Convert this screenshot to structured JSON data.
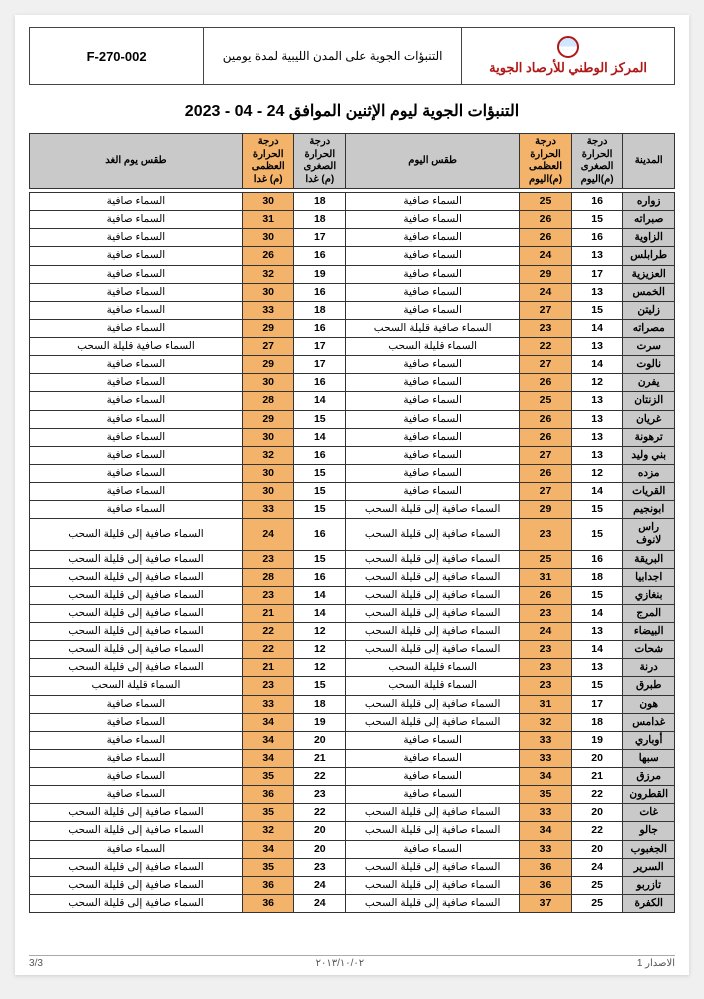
{
  "header": {
    "org_name": "المركز الوطني للأرصاد الجوية",
    "doc_title": "التنبؤات الجوية على المدن الليبية لمدة يومين",
    "doc_number": "F-270-002"
  },
  "title": "التنبؤات الجوية ليوم الإثنين الموافق 24 - 04 - 2023",
  "columns": {
    "city": "المدينة",
    "tmin_today": "درجة الحرارة الصغرى (م)اليوم",
    "tmax_today": "درجة الحرارة العظمى (م)اليوم",
    "cond_today": "طقس اليوم",
    "tmin_tomorrow": "درجة الحرارة الصغرى (م) غدا",
    "tmax_tomorrow": "درجة الحرارة العظمى (م) غدا",
    "cond_tomorrow": "طقس يوم الغد"
  },
  "col_widths_pct": {
    "city": 8,
    "tmin_today": 8,
    "tmax_today": 8,
    "cond_today": 27,
    "tmin_tomorrow": 8,
    "tmax_tomorrow": 8,
    "cond_tomorrow": 33
  },
  "colors": {
    "header_gray": "#c9c9c9",
    "orange": "#f4b36a",
    "org_red": "#b01818",
    "border": "#333333"
  },
  "rows": [
    {
      "city": "زواره",
      "tmin_t": 16,
      "tmax_t": 25,
      "cond_t": "السماء صافية",
      "tmin_m": 18,
      "tmax_m": 30,
      "cond_m": "السماء صافية"
    },
    {
      "city": "صبراته",
      "tmin_t": 15,
      "tmax_t": 26,
      "cond_t": "السماء صافية",
      "tmin_m": 18,
      "tmax_m": 31,
      "cond_m": "السماء صافية"
    },
    {
      "city": "الزاوية",
      "tmin_t": 16,
      "tmax_t": 26,
      "cond_t": "السماء صافية",
      "tmin_m": 17,
      "tmax_m": 30,
      "cond_m": "السماء صافية"
    },
    {
      "city": "طرابلس",
      "tmin_t": 13,
      "tmax_t": 24,
      "cond_t": "السماء صافية",
      "tmin_m": 16,
      "tmax_m": 26,
      "cond_m": "السماء صافية"
    },
    {
      "city": "العزيزية",
      "tmin_t": 17,
      "tmax_t": 29,
      "cond_t": "السماء صافية",
      "tmin_m": 19,
      "tmax_m": 32,
      "cond_m": "السماء صافية"
    },
    {
      "city": "الخمس",
      "tmin_t": 13,
      "tmax_t": 24,
      "cond_t": "السماء صافية",
      "tmin_m": 16,
      "tmax_m": 30,
      "cond_m": "السماء صافية"
    },
    {
      "city": "زليتن",
      "tmin_t": 15,
      "tmax_t": 27,
      "cond_t": "السماء صافية",
      "tmin_m": 18,
      "tmax_m": 33,
      "cond_m": "السماء صافية"
    },
    {
      "city": "مصراته",
      "tmin_t": 14,
      "tmax_t": 23,
      "cond_t": "السماء صافية قليلة السحب",
      "tmin_m": 16,
      "tmax_m": 29,
      "cond_m": "السماء صافية"
    },
    {
      "city": "سرت",
      "tmin_t": 13,
      "tmax_t": 22,
      "cond_t": "السماء قليلة السحب",
      "tmin_m": 17,
      "tmax_m": 27,
      "cond_m": "السماء صافية قليلة السحب"
    },
    {
      "city": "نالوت",
      "tmin_t": 14,
      "tmax_t": 27,
      "cond_t": "السماء صافية",
      "tmin_m": 17,
      "tmax_m": 29,
      "cond_m": "السماء صافية"
    },
    {
      "city": "يفرن",
      "tmin_t": 12,
      "tmax_t": 26,
      "cond_t": "السماء صافية",
      "tmin_m": 16,
      "tmax_m": 30,
      "cond_m": "السماء صافية"
    },
    {
      "city": "الزنتان",
      "tmin_t": 13,
      "tmax_t": 25,
      "cond_t": "السماء صافية",
      "tmin_m": 14,
      "tmax_m": 28,
      "cond_m": "السماء صافية"
    },
    {
      "city": "غريان",
      "tmin_t": 13,
      "tmax_t": 26,
      "cond_t": "السماء صافية",
      "tmin_m": 15,
      "tmax_m": 29,
      "cond_m": "السماء صافية"
    },
    {
      "city": "ترهونة",
      "tmin_t": 13,
      "tmax_t": 26,
      "cond_t": "السماء صافية",
      "tmin_m": 14,
      "tmax_m": 30,
      "cond_m": "السماء صافية"
    },
    {
      "city": "بني وليد",
      "tmin_t": 13,
      "tmax_t": 27,
      "cond_t": "السماء صافية",
      "tmin_m": 16,
      "tmax_m": 32,
      "cond_m": "السماء صافية"
    },
    {
      "city": "مزده",
      "tmin_t": 12,
      "tmax_t": 26,
      "cond_t": "السماء صافية",
      "tmin_m": 15,
      "tmax_m": 30,
      "cond_m": "السماء صافية"
    },
    {
      "city": "القريات",
      "tmin_t": 14,
      "tmax_t": 27,
      "cond_t": "السماء صافية",
      "tmin_m": 15,
      "tmax_m": 30,
      "cond_m": "السماء صافية"
    },
    {
      "city": "ابونجيم",
      "tmin_t": 15,
      "tmax_t": 29,
      "cond_t": "السماء صافية إلى قليلة السحب",
      "tmin_m": 15,
      "tmax_m": 33,
      "cond_m": "السماء صافية"
    },
    {
      "city": "راس لانوف",
      "tmin_t": 15,
      "tmax_t": 23,
      "cond_t": "السماء صافية إلى قليلة السحب",
      "tmin_m": 16,
      "tmax_m": 24,
      "cond_m": "السماء صافية إلى قليلة السحب"
    },
    {
      "city": "البريقة",
      "tmin_t": 16,
      "tmax_t": 25,
      "cond_t": "السماء صافية إلى قليلة السحب",
      "tmin_m": 15,
      "tmax_m": 23,
      "cond_m": "السماء صافية إلى قليلة السحب"
    },
    {
      "city": "اجدابيا",
      "tmin_t": 18,
      "tmax_t": 31,
      "cond_t": "السماء صافية إلى قليلة السحب",
      "tmin_m": 16,
      "tmax_m": 28,
      "cond_m": "السماء صافية إلى قليلة السحب"
    },
    {
      "city": "بنغازي",
      "tmin_t": 15,
      "tmax_t": 26,
      "cond_t": "السماء صافية إلى قليلة السحب",
      "tmin_m": 14,
      "tmax_m": 23,
      "cond_m": "السماء صافية إلى قليلة السحب"
    },
    {
      "city": "المرج",
      "tmin_t": 14,
      "tmax_t": 23,
      "cond_t": "السماء صافية إلى قليلة السحب",
      "tmin_m": 14,
      "tmax_m": 21,
      "cond_m": "السماء صافية إلى قليلة السحب"
    },
    {
      "city": "البيضاء",
      "tmin_t": 13,
      "tmax_t": 24,
      "cond_t": "السماء صافية إلى قليلة السحب",
      "tmin_m": 12,
      "tmax_m": 22,
      "cond_m": "السماء صافية إلى قليلة السحب"
    },
    {
      "city": "شحات",
      "tmin_t": 14,
      "tmax_t": 23,
      "cond_t": "السماء صافية إلى قليلة السحب",
      "tmin_m": 12,
      "tmax_m": 22,
      "cond_m": "السماء صافية إلى قليلة السحب"
    },
    {
      "city": "درنة",
      "tmin_t": 13,
      "tmax_t": 23,
      "cond_t": "السماء قليلة السحب",
      "tmin_m": 12,
      "tmax_m": 21,
      "cond_m": "السماء صافية إلى قليلة السحب"
    },
    {
      "city": "طبرق",
      "tmin_t": 15,
      "tmax_t": 23,
      "cond_t": "السماء قليلة السحب",
      "tmin_m": 15,
      "tmax_m": 23,
      "cond_m": "السماء قليلة السحب"
    },
    {
      "city": "هون",
      "tmin_t": 17,
      "tmax_t": 31,
      "cond_t": "السماء صافية إلى قليلة السحب",
      "tmin_m": 18,
      "tmax_m": 33,
      "cond_m": "السماء صافية"
    },
    {
      "city": "غدامس",
      "tmin_t": 18,
      "tmax_t": 32,
      "cond_t": "السماء صافية إلى قليلة السحب",
      "tmin_m": 19,
      "tmax_m": 34,
      "cond_m": "السماء صافية"
    },
    {
      "city": "أوباري",
      "tmin_t": 19,
      "tmax_t": 33,
      "cond_t": "السماء صافية",
      "tmin_m": 20,
      "tmax_m": 34,
      "cond_m": "السماء صافية"
    },
    {
      "city": "سبها",
      "tmin_t": 20,
      "tmax_t": 33,
      "cond_t": "السماء صافية",
      "tmin_m": 21,
      "tmax_m": 34,
      "cond_m": "السماء صافية"
    },
    {
      "city": "مرزق",
      "tmin_t": 21,
      "tmax_t": 34,
      "cond_t": "السماء صافية",
      "tmin_m": 22,
      "tmax_m": 35,
      "cond_m": "السماء صافية"
    },
    {
      "city": "القطرون",
      "tmin_t": 22,
      "tmax_t": 35,
      "cond_t": "السماء صافية",
      "tmin_m": 23,
      "tmax_m": 36,
      "cond_m": "السماء صافية"
    },
    {
      "city": "غات",
      "tmin_t": 20,
      "tmax_t": 33,
      "cond_t": "السماء صافية إلى قليلة السحب",
      "tmin_m": 22,
      "tmax_m": 35,
      "cond_m": "السماء صافية إلى قليلة السحب"
    },
    {
      "city": "جالو",
      "tmin_t": 22,
      "tmax_t": 34,
      "cond_t": "السماء صافية إلى قليلة السحب",
      "tmin_m": 20,
      "tmax_m": 32,
      "cond_m": "السماء صافية إلى قليلة السحب"
    },
    {
      "city": "الجغبوب",
      "tmin_t": 20,
      "tmax_t": 33,
      "cond_t": "السماء صافية",
      "tmin_m": 20,
      "tmax_m": 34,
      "cond_m": "السماء صافية"
    },
    {
      "city": "السرير",
      "tmin_t": 24,
      "tmax_t": 36,
      "cond_t": "السماء صافية إلى قليلة السحب",
      "tmin_m": 23,
      "tmax_m": 35,
      "cond_m": "السماء صافية إلى قليلة السحب"
    },
    {
      "city": "تازربو",
      "tmin_t": 25,
      "tmax_t": 36,
      "cond_t": "السماء صافية إلى قليلة السحب",
      "tmin_m": 24,
      "tmax_m": 36,
      "cond_m": "السماء صافية إلى قليلة السحب"
    },
    {
      "city": "الكفرة",
      "tmin_t": 25,
      "tmax_t": 37,
      "cond_t": "السماء صافية إلى قليلة السحب",
      "tmin_m": 24,
      "tmax_m": 36,
      "cond_m": "السماء صافية إلى قليلة السحب"
    }
  ],
  "footer": {
    "right": "الاصدار 1",
    "center": "٢٠١٣/١٠/٠٢",
    "left": "3/3"
  }
}
